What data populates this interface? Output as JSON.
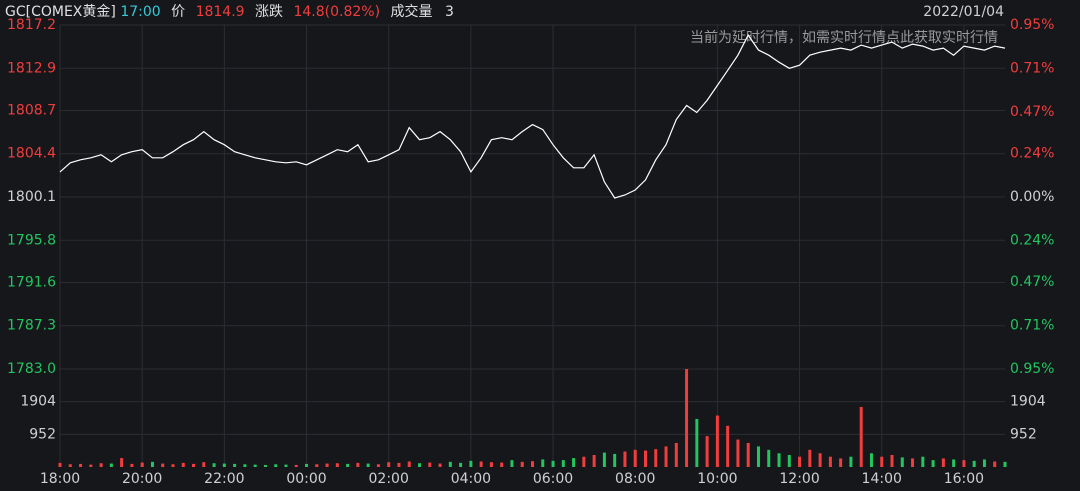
{
  "header": {
    "symbol": "GC[COMEX黄金]",
    "time": "17:00",
    "price_label": "价",
    "price": "1814.9",
    "change_label": "涨跌",
    "change": "14.8(0.82%)",
    "volume_label": "成交量",
    "volume": "3",
    "date": "2022/01/04",
    "notice": "当前为延时行情，如需实时行情点此获取实时行情"
  },
  "chart_data": [
    {
      "type": "line",
      "x": [
        0,
        15,
        30,
        45,
        60,
        75,
        90,
        105,
        120,
        135,
        150,
        165,
        180,
        195,
        210,
        225,
        240,
        255,
        270,
        285,
        300,
        315,
        330,
        345,
        360,
        375,
        390,
        405,
        420,
        435,
        450,
        465,
        480,
        495,
        510,
        525,
        540,
        555,
        570,
        585,
        600,
        615,
        630,
        645,
        660,
        675,
        690,
        705,
        720,
        735,
        750,
        765,
        780,
        795,
        810,
        825,
        840,
        855,
        870,
        885,
        900,
        915,
        930,
        945,
        960,
        975,
        990,
        1005,
        1020,
        1035,
        1050,
        1065,
        1080,
        1095,
        1110,
        1125,
        1140,
        1155,
        1170,
        1185,
        1200,
        1215,
        1230,
        1245,
        1260,
        1275,
        1290,
        1305,
        1320,
        1335,
        1350,
        1365,
        1380
      ],
      "series": [
        {
          "color": "#ffffff",
          "values": [
            1802.6,
            1803.5,
            1803.8,
            1804.0,
            1804.3,
            1803.6,
            1804.3,
            1804.6,
            1804.8,
            1804.0,
            1804.0,
            1804.6,
            1805.3,
            1805.8,
            1806.6,
            1805.8,
            1805.3,
            1804.6,
            1804.3,
            1804.0,
            1803.8,
            1803.6,
            1803.5,
            1803.6,
            1803.3,
            1803.8,
            1804.3,
            1804.8,
            1804.6,
            1805.3,
            1803.6,
            1803.8,
            1804.3,
            1804.8,
            1807.0,
            1805.8,
            1806.0,
            1806.6,
            1805.8,
            1804.6,
            1802.6,
            1804.0,
            1805.8,
            1806.0,
            1805.8,
            1806.6,
            1807.3,
            1806.8,
            1805.3,
            1804.0,
            1803.0,
            1803.0,
            1804.3,
            1801.6,
            1800.0,
            1800.3,
            1800.8,
            1801.8,
            1803.8,
            1805.3,
            1807.8,
            1809.2,
            1808.5,
            1809.7,
            1811.2,
            1812.7,
            1814.2,
            1816.2,
            1814.7,
            1814.2,
            1813.5,
            1812.9,
            1813.2,
            1814.2,
            1814.5,
            1814.7,
            1814.9,
            1814.7,
            1815.2,
            1814.9,
            1815.2,
            1815.5,
            1814.9,
            1815.3,
            1815.1,
            1814.7,
            1814.9,
            1814.2,
            1815.1,
            1814.9,
            1814.7,
            1815.1,
            1814.9
          ]
        }
      ],
      "xlim": [
        0,
        1380
      ],
      "xticks": [
        {
          "value": 0,
          "label": "18:00"
        },
        {
          "value": 120,
          "label": "20:00"
        },
        {
          "value": 240,
          "label": "22:00"
        },
        {
          "value": 360,
          "label": "00:00"
        },
        {
          "value": 480,
          "label": "02:00"
        },
        {
          "value": 600,
          "label": "04:00"
        },
        {
          "value": 720,
          "label": "06:00"
        },
        {
          "value": 840,
          "label": "08:00"
        },
        {
          "value": 960,
          "label": "10:00"
        },
        {
          "value": 1080,
          "label": "12:00"
        },
        {
          "value": 1200,
          "label": "14:00"
        },
        {
          "value": 1320,
          "label": "16:00"
        }
      ],
      "ylim": [
        1783.0,
        1817.2
      ],
      "yticks": [
        1817.2,
        1812.9,
        1808.7,
        1804.4,
        1800.1,
        1795.8,
        1791.6,
        1787.3,
        {
          "value": 1783.0,
          "label": "1783.0"
        }
      ],
      "y2lim": [
        -0.95,
        0.95
      ],
      "y2ticks": [
        {
          "value": 0.95,
          "label": "0.95%"
        },
        {
          "value": 0.71,
          "label": "0.71%"
        },
        {
          "value": 0.47,
          "label": "0.47%"
        },
        {
          "value": 0.24,
          "label": "0.24%"
        },
        {
          "value": 0,
          "label": "0.00%"
        },
        {
          "value": -0.24,
          "label": "0.24%"
        },
        {
          "value": -0.47,
          "label": "0.47%"
        },
        {
          "value": -0.71,
          "label": "0.71%"
        },
        {
          "value": -0.95,
          "label": "0.95%"
        }
      ],
      "grid": true
    },
    {
      "type": "bar",
      "values": [
        120,
        80,
        90,
        70,
        110,
        100,
        260,
        90,
        130,
        150,
        100,
        80,
        120,
        90,
        140,
        110,
        100,
        90,
        80,
        70,
        60,
        80,
        70,
        60,
        90,
        80,
        100,
        110,
        90,
        120,
        100,
        80,
        140,
        120,
        160,
        110,
        130,
        100,
        150,
        120,
        180,
        160,
        140,
        130,
        200,
        150,
        170,
        220,
        180,
        200,
        260,
        300,
        350,
        420,
        380,
        450,
        500,
        480,
        520,
        600,
        700,
        2856,
        1400,
        900,
        1500,
        1200,
        800,
        700,
        600,
        500,
        400,
        350,
        300,
        500,
        400,
        300,
        250,
        300,
        1750,
        400,
        300,
        350,
        280,
        250,
        300,
        200,
        250,
        220,
        200,
        180,
        220,
        160,
        150
      ],
      "ylim": [
        0,
        2856
      ],
      "yticks": [
        1904,
        952
      ],
      "up_color": "#f23d3d",
      "down_color": "#22c55e"
    }
  ]
}
